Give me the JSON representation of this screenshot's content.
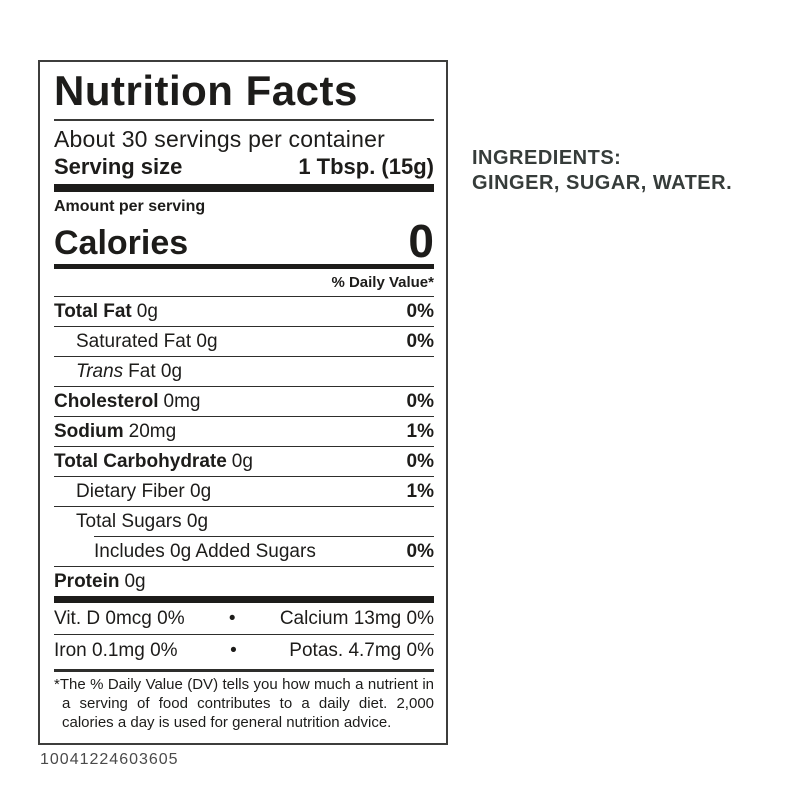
{
  "colors": {
    "ink": "#1d1c1a",
    "ingredients_text": "#363c3a",
    "barcode_text": "#4a4a4a",
    "label_border": "#3e3e3c"
  },
  "nutrition_label": {
    "title": "Nutrition Facts",
    "servings_per_container": "About 30 servings per container",
    "serving_size": {
      "label": "Serving size",
      "value": "1 Tbsp. (15g)"
    },
    "amount_per_serving": "Amount per serving",
    "calories": {
      "label": "Calories",
      "value": "0"
    },
    "daily_value_header": "% Daily Value*",
    "rows": [
      {
        "name": "Total Fat",
        "amount": "0g",
        "dv": "0%"
      },
      {
        "name": "Saturated Fat 0g",
        "dv": "0%"
      },
      {
        "name_italic": "Trans",
        "name_rest": "Fat 0g",
        "dv": ""
      },
      {
        "name": "Cholesterol",
        "amount": "0mg",
        "dv": "0%"
      },
      {
        "name": "Sodium",
        "amount": "20mg",
        "dv": "1%"
      },
      {
        "name": "Total Carbohydrate",
        "amount": "0g",
        "dv": "0%"
      },
      {
        "name": "Dietary Fiber 0g",
        "dv": "1%"
      },
      {
        "name": "Total Sugars 0g",
        "dv": ""
      },
      {
        "name": "Includes 0g Added Sugars",
        "dv": "0%"
      },
      {
        "name": "Protein",
        "amount": "0g",
        "dv": ""
      }
    ],
    "micronutrients": {
      "bullet": "•",
      "rows": [
        {
          "left": "Vit. D 0mcg 0%",
          "right": "Calcium 13mg 0%"
        },
        {
          "left": "Iron 0.1mg 0%",
          "right": "Potas. 4.7mg 0%"
        }
      ]
    },
    "footnote": "*The % Daily Value (DV) tells you how much a nutrient in a serving of food contributes to a daily diet. 2,000 calories a day is used for general nutrition advice.",
    "barcode_number": "10041224603605"
  },
  "ingredients_panel": {
    "heading": "INGREDIENTS:",
    "list": "GINGER, SUGAR, WATER."
  }
}
